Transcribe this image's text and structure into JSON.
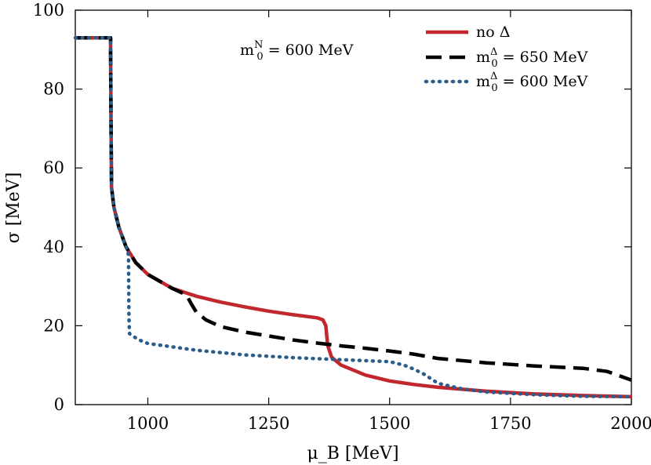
{
  "chart_data": {
    "type": "line",
    "xlabel": "μ_B [MeV]",
    "ylabel": "σ [MeV]",
    "xlim": [
      850,
      2000
    ],
    "ylim": [
      0,
      100
    ],
    "x_ticks": [
      1000,
      1250,
      1500,
      1750,
      2000
    ],
    "y_ticks": [
      0,
      20,
      40,
      60,
      80,
      100
    ],
    "grid": false,
    "legend_position": "top-right",
    "annotation": {
      "text": "m_0^N = 600 MeV",
      "base": "m",
      "sub": "0",
      "sup": "N",
      "rest": " = 600 MeV"
    },
    "series": [
      {
        "name": "no Δ",
        "legend": {
          "base": "no Δ",
          "sub": "",
          "sup": "",
          "rest": ""
        },
        "color": "#c1272d",
        "style": "solid",
        "points": [
          [
            850,
            93
          ],
          [
            923,
            93
          ],
          [
            923,
            90
          ],
          [
            924,
            70
          ],
          [
            925,
            55
          ],
          [
            930,
            50
          ],
          [
            940,
            45
          ],
          [
            955,
            40
          ],
          [
            975,
            36
          ],
          [
            1000,
            33
          ],
          [
            1050,
            29.5
          ],
          [
            1100,
            27.5
          ],
          [
            1150,
            26
          ],
          [
            1200,
            24.8
          ],
          [
            1250,
            23.7
          ],
          [
            1300,
            22.8
          ],
          [
            1350,
            22
          ],
          [
            1362,
            21.5
          ],
          [
            1368,
            20
          ],
          [
            1372,
            15
          ],
          [
            1380,
            12
          ],
          [
            1400,
            10
          ],
          [
            1450,
            7.5
          ],
          [
            1500,
            6
          ],
          [
            1550,
            5.1
          ],
          [
            1600,
            4.4
          ],
          [
            1700,
            3.4
          ],
          [
            1800,
            2.7
          ],
          [
            1900,
            2.3
          ],
          [
            2000,
            2.0
          ]
        ]
      },
      {
        "name": "m_0^Δ = 650 MeV",
        "legend": {
          "base": "m",
          "sub": "0",
          "sup": "Δ",
          "rest": " = 650 MeV"
        },
        "color": "#000000",
        "style": "dashed",
        "points": [
          [
            850,
            93
          ],
          [
            923,
            93
          ],
          [
            923,
            90
          ],
          [
            924,
            70
          ],
          [
            925,
            55
          ],
          [
            930,
            50
          ],
          [
            940,
            45
          ],
          [
            955,
            40
          ],
          [
            975,
            36
          ],
          [
            1000,
            33
          ],
          [
            1050,
            29.5
          ],
          [
            1080,
            27.8
          ],
          [
            1090,
            25.5
          ],
          [
            1100,
            23.5
          ],
          [
            1120,
            21.5
          ],
          [
            1150,
            19.8
          ],
          [
            1200,
            18.4
          ],
          [
            1250,
            17.4
          ],
          [
            1300,
            16.4
          ],
          [
            1350,
            15.6
          ],
          [
            1400,
            14.9
          ],
          [
            1450,
            14.3
          ],
          [
            1500,
            13.6
          ],
          [
            1550,
            12.8
          ],
          [
            1600,
            11.7
          ],
          [
            1700,
            10.6
          ],
          [
            1800,
            9.8
          ],
          [
            1900,
            9.2
          ],
          [
            1950,
            8.4
          ],
          [
            2000,
            6.2
          ]
        ]
      },
      {
        "name": "m_0^Δ = 600 MeV",
        "legend": {
          "base": "m",
          "sub": "0",
          "sup": "Δ",
          "rest": " = 600 MeV"
        },
        "color": "#2b5d8c",
        "style": "dotted",
        "points": [
          [
            850,
            93
          ],
          [
            923,
            93
          ],
          [
            923,
            90
          ],
          [
            924,
            70
          ],
          [
            925,
            55
          ],
          [
            930,
            50
          ],
          [
            940,
            45
          ],
          [
            955,
            40
          ],
          [
            960,
            38
          ],
          [
            961,
            22
          ],
          [
            962,
            18
          ],
          [
            980,
            16.5
          ],
          [
            1000,
            15.5
          ],
          [
            1100,
            13.8
          ],
          [
            1200,
            12.6
          ],
          [
            1300,
            11.9
          ],
          [
            1400,
            11.4
          ],
          [
            1500,
            10.9
          ],
          [
            1530,
            10
          ],
          [
            1550,
            9
          ],
          [
            1570,
            7.8
          ],
          [
            1600,
            5.4
          ],
          [
            1650,
            4
          ],
          [
            1700,
            3.2
          ],
          [
            1800,
            2.5
          ],
          [
            1900,
            2.1
          ],
          [
            2000,
            2.0
          ]
        ]
      }
    ]
  }
}
